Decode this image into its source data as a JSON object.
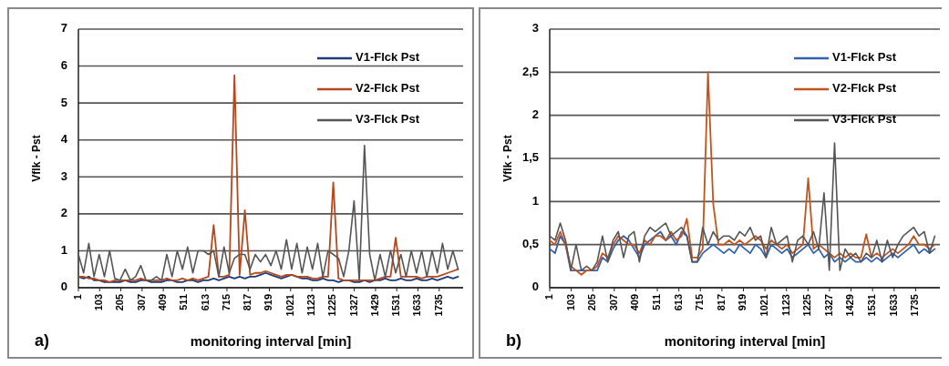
{
  "chart_data": [
    {
      "type": "line",
      "xlabel": "monitoring interval [min]",
      "ylabel": "Vflk - Pst",
      "annotations": [
        "a)"
      ],
      "legend": "top right",
      "grid": "y",
      "xlim": [
        1,
        1850
      ],
      "xticks": [
        1,
        103,
        205,
        307,
        409,
        511,
        613,
        715,
        817,
        919,
        1021,
        1123,
        1225,
        1327,
        1429,
        1531,
        1633,
        1735
      ],
      "ylim": [
        0,
        7
      ],
      "yticks": [
        0,
        1,
        2,
        3,
        4,
        5,
        6,
        7
      ],
      "x": [
        1,
        26,
        51,
        76,
        101,
        126,
        151,
        176,
        201,
        226,
        251,
        276,
        301,
        326,
        351,
        376,
        401,
        426,
        451,
        476,
        501,
        526,
        551,
        576,
        601,
        626,
        651,
        676,
        701,
        726,
        751,
        776,
        801,
        826,
        851,
        876,
        901,
        926,
        951,
        976,
        1001,
        1026,
        1051,
        1076,
        1101,
        1126,
        1151,
        1176,
        1201,
        1226,
        1251,
        1276,
        1301,
        1326,
        1351,
        1376,
        1401,
        1426,
        1451,
        1476,
        1501,
        1526,
        1551,
        1576,
        1601,
        1626,
        1651,
        1676,
        1701,
        1726,
        1751,
        1776,
        1801,
        1826
      ],
      "series": [
        {
          "name": "V1-Flck Pst",
          "color": "#1f3a7a",
          "values": [
            0.3,
            0.25,
            0.3,
            0.2,
            0.2,
            0.15,
            0.15,
            0.15,
            0.15,
            0.2,
            0.15,
            0.15,
            0.2,
            0.2,
            0.15,
            0.15,
            0.15,
            0.2,
            0.2,
            0.15,
            0.15,
            0.2,
            0.2,
            0.15,
            0.2,
            0.2,
            0.25,
            0.2,
            0.25,
            0.3,
            0.25,
            0.3,
            0.25,
            0.3,
            0.3,
            0.35,
            0.4,
            0.35,
            0.3,
            0.25,
            0.3,
            0.35,
            0.3,
            0.25,
            0.25,
            0.2,
            0.2,
            0.25,
            0.2,
            0.2,
            0.15,
            0.2,
            0.2,
            0.15,
            0.15,
            0.2,
            0.15,
            0.2,
            0.2,
            0.25,
            0.2,
            0.2,
            0.25,
            0.2,
            0.2,
            0.25,
            0.2,
            0.2,
            0.25,
            0.2,
            0.25,
            0.3,
            0.25,
            0.3
          ]
        },
        {
          "name": "V2-Flck Pst",
          "color": "#b5481c",
          "values": [
            0.3,
            0.3,
            0.25,
            0.25,
            0.2,
            0.2,
            0.15,
            0.2,
            0.2,
            0.2,
            0.2,
            0.2,
            0.25,
            0.2,
            0.2,
            0.2,
            0.2,
            0.25,
            0.2,
            0.2,
            0.25,
            0.2,
            0.25,
            0.2,
            0.25,
            0.3,
            1.7,
            0.3,
            0.3,
            0.35,
            5.75,
            0.35,
            2.1,
            0.35,
            0.4,
            0.4,
            0.45,
            0.4,
            0.35,
            0.3,
            0.35,
            0.35,
            0.3,
            0.3,
            0.3,
            0.25,
            0.25,
            0.3,
            0.3,
            2.85,
            0.25,
            0.2,
            0.2,
            0.2,
            0.2,
            0.2,
            0.2,
            0.2,
            0.25,
            0.3,
            0.3,
            1.35,
            0.3,
            0.3,
            0.3,
            0.3,
            0.25,
            0.3,
            0.3,
            0.3,
            0.35,
            0.4,
            0.45,
            0.5
          ]
        },
        {
          "name": "V3-Flck Pst",
          "color": "#555555",
          "values": [
            0.9,
            0.4,
            1.2,
            0.3,
            0.9,
            0.3,
            1.0,
            0.25,
            0.2,
            0.5,
            0.2,
            0.3,
            0.6,
            0.2,
            0.2,
            0.3,
            0.2,
            0.9,
            0.3,
            1.0,
            0.5,
            1.1,
            0.4,
            1.0,
            1.0,
            0.9,
            1.0,
            0.3,
            1.1,
            0.4,
            0.8,
            0.9,
            0.9,
            0.5,
            0.9,
            0.7,
            0.9,
            0.6,
            1.0,
            0.5,
            1.3,
            0.5,
            1.2,
            0.4,
            1.1,
            0.5,
            1.2,
            0.3,
            1.0,
            0.9,
            0.8,
            0.3,
            1.0,
            2.35,
            0.2,
            3.85,
            0.9,
            0.2,
            0.9,
            0.3,
            1.0,
            0.4,
            0.9,
            0.3,
            1.0,
            0.4,
            1.0,
            0.3,
            1.0,
            0.4,
            1.2,
            0.5,
            1.0,
            0.5
          ]
        }
      ]
    },
    {
      "type": "line",
      "xlabel": "monitoring interval [min]",
      "ylabel": "Vflk - Pst",
      "annotations": [
        "b)"
      ],
      "legend": "top right",
      "grid": "y",
      "xlim": [
        1,
        1850
      ],
      "xticks": [
        1,
        103,
        205,
        307,
        409,
        511,
        613,
        715,
        817,
        919,
        1021,
        1123,
        1225,
        1327,
        1429,
        1531,
        1633,
        1735
      ],
      "ylim": [
        0,
        3
      ],
      "yticks": [
        0,
        {
          "value": 0.5,
          "label": "0,5"
        },
        1,
        {
          "value": 1.5,
          "label": "1,5"
        },
        2,
        {
          "value": 2.5,
          "label": "2,5"
        },
        3
      ],
      "x": [
        1,
        26,
        51,
        76,
        101,
        126,
        151,
        176,
        201,
        226,
        251,
        276,
        301,
        326,
        351,
        376,
        401,
        426,
        451,
        476,
        501,
        526,
        551,
        576,
        601,
        626,
        651,
        676,
        701,
        726,
        751,
        776,
        801,
        826,
        851,
        876,
        901,
        926,
        951,
        976,
        1001,
        1026,
        1051,
        1076,
        1101,
        1126,
        1151,
        1176,
        1201,
        1226,
        1251,
        1276,
        1301,
        1326,
        1351,
        1376,
        1401,
        1426,
        1451,
        1476,
        1501,
        1526,
        1551,
        1576,
        1601,
        1626,
        1651,
        1676,
        1701,
        1726,
        1751,
        1776,
        1801,
        1826
      ],
      "series": [
        {
          "name": "V1-Flck Pst",
          "color": "#2f62b0",
          "values": [
            0.45,
            0.4,
            0.6,
            0.5,
            0.2,
            0.2,
            0.2,
            0.2,
            0.2,
            0.2,
            0.35,
            0.3,
            0.45,
            0.55,
            0.6,
            0.55,
            0.45,
            0.35,
            0.5,
            0.55,
            0.6,
            0.65,
            0.55,
            0.6,
            0.5,
            0.65,
            0.6,
            0.3,
            0.3,
            0.4,
            0.45,
            0.5,
            0.45,
            0.4,
            0.45,
            0.4,
            0.5,
            0.45,
            0.4,
            0.5,
            0.45,
            0.35,
            0.5,
            0.45,
            0.4,
            0.45,
            0.35,
            0.4,
            0.45,
            0.5,
            0.4,
            0.45,
            0.35,
            0.4,
            0.3,
            0.35,
            0.3,
            0.35,
            0.3,
            0.3,
            0.35,
            0.3,
            0.35,
            0.3,
            0.35,
            0.4,
            0.35,
            0.4,
            0.45,
            0.5,
            0.4,
            0.45,
            0.4,
            0.45
          ]
        },
        {
          "name": "V2-Flck Pst",
          "color": "#c4531c",
          "values": [
            0.55,
            0.5,
            0.65,
            0.5,
            0.25,
            0.2,
            0.15,
            0.2,
            0.2,
            0.25,
            0.4,
            0.35,
            0.5,
            0.6,
            0.55,
            0.5,
            0.5,
            0.4,
            0.55,
            0.5,
            0.6,
            0.6,
            0.55,
            0.65,
            0.55,
            0.6,
            0.8,
            0.35,
            0.35,
            0.45,
            2.5,
            0.97,
            0.5,
            0.5,
            0.55,
            0.5,
            0.55,
            0.5,
            0.55,
            0.6,
            0.55,
            0.45,
            0.55,
            0.5,
            0.45,
            0.5,
            0.4,
            0.45,
            0.5,
            1.27,
            0.45,
            0.5,
            0.45,
            0.4,
            0.35,
            0.4,
            0.35,
            0.4,
            0.35,
            0.35,
            0.62,
            0.35,
            0.4,
            0.35,
            0.4,
            0.45,
            0.4,
            0.45,
            0.5,
            0.6,
            0.5,
            0.5,
            0.45,
            0.5
          ]
        },
        {
          "name": "V3-Flck Pst",
          "color": "#555555",
          "values": [
            0.6,
            0.55,
            0.75,
            0.55,
            0.2,
            0.5,
            0.2,
            0.25,
            0.2,
            0.3,
            0.6,
            0.3,
            0.55,
            0.65,
            0.35,
            0.6,
            0.65,
            0.3,
            0.6,
            0.7,
            0.65,
            0.7,
            0.75,
            0.6,
            0.65,
            0.7,
            0.6,
            0.3,
            0.3,
            0.7,
            0.5,
            0.65,
            0.55,
            0.6,
            0.6,
            0.55,
            0.65,
            0.6,
            0.7,
            0.55,
            0.6,
            0.35,
            0.7,
            0.5,
            0.55,
            0.6,
            0.3,
            0.55,
            0.6,
            0.5,
            0.65,
            0.45,
            1.1,
            0.2,
            1.68,
            0.2,
            0.45,
            0.35,
            0.4,
            0.3,
            0.4,
            0.35,
            0.55,
            0.3,
            0.55,
            0.35,
            0.5,
            0.6,
            0.65,
            0.7,
            0.6,
            0.65,
            0.4,
            0.6
          ]
        }
      ]
    }
  ]
}
